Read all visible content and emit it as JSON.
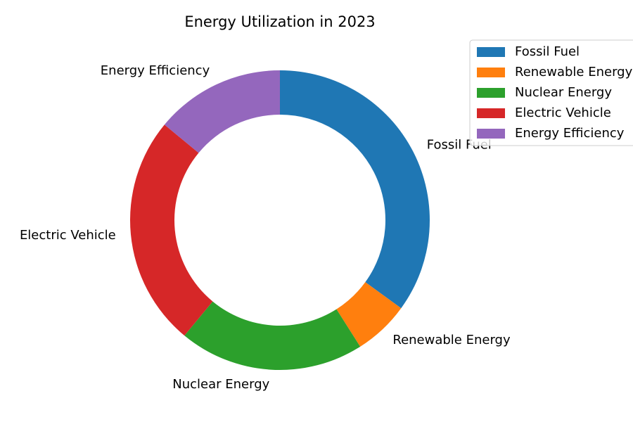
{
  "chart_data": {
    "type": "pie",
    "donut": true,
    "title": "Energy Utilization in 2023",
    "categories": [
      "Fossil Fuel",
      "Renewable Energy",
      "Nuclear Energy",
      "Electric Vehicle",
      "Energy Efficiency"
    ],
    "values": [
      35,
      6,
      20,
      25,
      14
    ],
    "colors": [
      "#1f77b4",
      "#ff7f0e",
      "#2ca02c",
      "#d62728",
      "#9467bd"
    ],
    "start_angle": "top, clockwise",
    "legend": {
      "placement": "top-right",
      "entries": [
        "Fossil Fuel",
        "Renewable Energy",
        "Nuclear Energy",
        "Electric Vehicle",
        "Energy Efficiency"
      ]
    }
  }
}
